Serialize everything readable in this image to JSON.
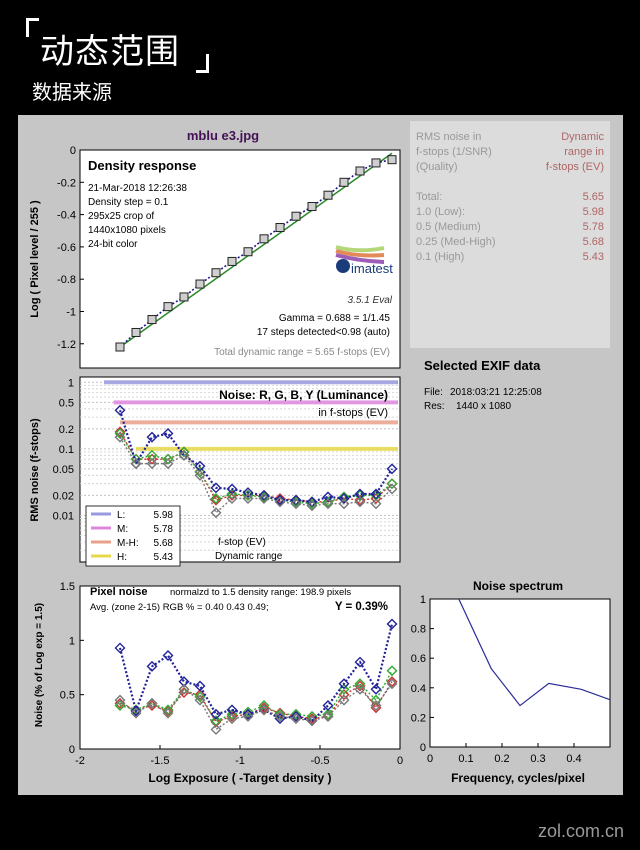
{
  "header": {
    "title": "动态范围",
    "subtitle": "数据来源"
  },
  "watermark": "zol.com.cn",
  "figure_title": "mblu e3.jpg",
  "colors": {
    "panel": "#c6c6c6",
    "plot_bg": "#ffffff",
    "L": "#9999dd",
    "M": "#dd88dd",
    "MH": "#e8a08a",
    "H": "#e6d94a"
  },
  "table": {
    "header_left": [
      "RMS noise in",
      "f-stops (1/SNR)",
      "(Quality)"
    ],
    "header_right": [
      "Dynamic",
      "range in",
      "f-stops (EV)"
    ],
    "rows": [
      {
        "label": "Total:",
        "value": "5.65"
      },
      {
        "label": "1.0  (Low):",
        "value": "5.98"
      },
      {
        "label": "0.5  (Medium)",
        "value": "5.78"
      },
      {
        "label": "0.25 (Med-High)",
        "value": "5.68"
      },
      {
        "label": "0.1  (High)",
        "value": "5.43"
      }
    ]
  },
  "exif": {
    "title": "Selected EXIF data",
    "file_label": "File:",
    "file_value": "2018:03:21 12:25:08",
    "res_label": "Res:",
    "res_value": "1440 x 1080"
  },
  "density": {
    "title": "Density response",
    "info": [
      "21-Mar-2018 12:26:38",
      "Density step = 0.1",
      "295x25 crop of",
      "1440x1080 pixels",
      "24-bit color"
    ],
    "logo": "imatest",
    "version": "3.5.1  Eval",
    "gamma": "Gamma = 0.688 = 1/1.45",
    "steps": "17 steps detected<0.98 (auto)",
    "total": "Total dynamic range = 5.65 f-stops (EV)",
    "ylabel": "Log ( Pixel level / 255 )"
  },
  "noise": {
    "title": "Noise: R, G, B, Y (Luminance)",
    "subtitle": "in f-stops (EV)",
    "ylabel": "RMS noise (f-stops)",
    "legend": [
      {
        "label": "L:",
        "value": "5.98"
      },
      {
        "label": "M:",
        "value": "5.78"
      },
      {
        "label": "M-H:",
        "value": "5.68"
      },
      {
        "label": "H:",
        "value": "5.43"
      }
    ],
    "note1": "f-stop (EV)",
    "note2": "Dynamic range"
  },
  "pixel": {
    "title": "Pixel noise",
    "line1": "normalzd to 1.5 density range: 198.9 pixels",
    "line2": "Avg. (zone 2-15) RGB % = 0.40  0.43  0.49;",
    "yval": "Y = 0.39%",
    "ylabel": "Noise (% of Log exp = 1.5)",
    "xlabel": "Log Exposure ( -Target density )"
  },
  "spectrum": {
    "title": "Noise spectrum",
    "xlabel": "Frequency, cycles/pixel"
  },
  "chart_data": [
    {
      "type": "line",
      "name": "density_response",
      "x": [
        -1.75,
        -1.65,
        -1.55,
        -1.45,
        -1.35,
        -1.25,
        -1.15,
        -1.05,
        -0.95,
        -0.85,
        -0.75,
        -0.65,
        -0.55,
        -0.45,
        -0.35,
        -0.25,
        -0.15,
        -0.05
      ],
      "y": [
        -1.22,
        -1.13,
        -1.05,
        -0.97,
        -0.91,
        -0.83,
        -0.76,
        -0.69,
        -0.63,
        -0.55,
        -0.48,
        -0.41,
        -0.35,
        -0.28,
        -0.2,
        -0.13,
        -0.08,
        -0.06
      ],
      "xlim": [
        -2,
        0
      ],
      "ylim": [
        -1.35,
        0
      ],
      "xticks": [
        "-2",
        "-1.5",
        "-1",
        "-0.5",
        "0"
      ],
      "yticks": [
        "0",
        "-0.2",
        "-0.4",
        "-0.6",
        "-0.8",
        "-1",
        "-1.2"
      ],
      "ytick_values": [
        0,
        -0.2,
        -0.4,
        -0.6,
        -0.8,
        -1,
        -1.2
      ],
      "xlabel": "",
      "ylabel": "Log ( Pixel level / 255 )",
      "grid": false
    },
    {
      "type": "line",
      "name": "rms_noise",
      "scale": "log",
      "x": [
        -1.75,
        -1.65,
        -1.55,
        -1.45,
        -1.35,
        -1.25,
        -1.15,
        -1.05,
        -0.95,
        -0.85,
        -0.75,
        -0.65,
        -0.55,
        -0.45,
        -0.35,
        -0.25,
        -0.15,
        -0.05
      ],
      "series": [
        {
          "name": "R",
          "color": "#cc3333",
          "values": [
            0.18,
            0.07,
            0.07,
            0.07,
            0.09,
            0.045,
            0.017,
            0.02,
            0.02,
            0.02,
            0.018,
            0.017,
            0.016,
            0.016,
            0.018,
            0.017,
            0.018,
            0.03
          ]
        },
        {
          "name": "G",
          "color": "#33aa33",
          "values": [
            0.17,
            0.07,
            0.08,
            0.07,
            0.09,
            0.045,
            0.018,
            0.021,
            0.02,
            0.019,
            0.017,
            0.016,
            0.015,
            0.016,
            0.019,
            0.02,
            0.02,
            0.03
          ]
        },
        {
          "name": "B",
          "color": "#222299",
          "values": [
            0.38,
            0.06,
            0.15,
            0.17,
            0.08,
            0.055,
            0.026,
            0.025,
            0.022,
            0.02,
            0.017,
            0.017,
            0.016,
            0.019,
            0.018,
            0.021,
            0.021,
            0.05
          ]
        },
        {
          "name": "Y",
          "color": "#777777",
          "values": [
            0.15,
            0.06,
            0.06,
            0.06,
            0.08,
            0.04,
            0.011,
            0.018,
            0.018,
            0.018,
            0.016,
            0.015,
            0.014,
            0.015,
            0.015,
            0.016,
            0.015,
            0.025
          ]
        }
      ],
      "thresholds": [
        1.0,
        0.5,
        0.25,
        0.1
      ],
      "threshold_start": [
        -1.85,
        -1.79,
        -1.75,
        -1.65
      ],
      "xlim": [
        -2,
        0
      ],
      "ylim": [
        0.002,
        1.2
      ],
      "yticks": [
        "1",
        "0.5",
        "0.2",
        "0.1",
        "0.05",
        "0.02",
        "0.01"
      ],
      "ytick_values": [
        1,
        0.5,
        0.2,
        0.1,
        0.05,
        0.02,
        0.01
      ],
      "ylabel": "RMS noise (f-stops)",
      "grid": true
    },
    {
      "type": "line",
      "name": "pixel_noise",
      "x": [
        -1.75,
        -1.65,
        -1.55,
        -1.45,
        -1.35,
        -1.25,
        -1.15,
        -1.05,
        -0.95,
        -0.85,
        -0.75,
        -0.65,
        -0.55,
        -0.45,
        -0.35,
        -0.25,
        -0.15,
        -0.05
      ],
      "series": [
        {
          "name": "R",
          "color": "#cc3333",
          "values": [
            0.42,
            0.36,
            0.4,
            0.35,
            0.52,
            0.5,
            0.25,
            0.3,
            0.32,
            0.38,
            0.33,
            0.3,
            0.28,
            0.3,
            0.5,
            0.58,
            0.38,
            0.62
          ]
        },
        {
          "name": "G",
          "color": "#33aa33",
          "values": [
            0.4,
            0.36,
            0.42,
            0.36,
            0.55,
            0.48,
            0.26,
            0.32,
            0.34,
            0.4,
            0.32,
            0.32,
            0.3,
            0.32,
            0.55,
            0.6,
            0.45,
            0.72
          ]
        },
        {
          "name": "B",
          "color": "#222299",
          "values": [
            0.93,
            0.35,
            0.76,
            0.86,
            0.62,
            0.58,
            0.32,
            0.36,
            0.32,
            0.36,
            0.28,
            0.3,
            0.26,
            0.4,
            0.6,
            0.8,
            0.55,
            1.15
          ]
        },
        {
          "name": "Y",
          "color": "#777777",
          "values": [
            0.45,
            0.33,
            0.42,
            0.33,
            0.55,
            0.45,
            0.18,
            0.28,
            0.3,
            0.36,
            0.3,
            0.28,
            0.26,
            0.3,
            0.45,
            0.55,
            0.4,
            0.6
          ]
        }
      ],
      "xlim": [
        -2,
        0
      ],
      "ylim": [
        0,
        1.5
      ],
      "xticks": [
        "-2",
        "-1.5",
        "-1",
        "-0.5",
        "0"
      ],
      "yticks": [
        "1.5",
        "1",
        "0.5",
        "0"
      ],
      "ytick_values": [
        1.5,
        1,
        0.5,
        0
      ],
      "xlabel": "Log Exposure ( -Target density )",
      "ylabel": "Noise (% of Log exp = 1.5)"
    },
    {
      "type": "line",
      "name": "noise_spectrum",
      "x": [
        0.08,
        0.17,
        0.25,
        0.33,
        0.42,
        0.5
      ],
      "values": [
        1.0,
        0.53,
        0.28,
        0.43,
        0.39,
        0.32
      ],
      "xlim": [
        0,
        0.5
      ],
      "ylim": [
        0,
        1
      ],
      "xticks": [
        "0",
        "0.1",
        "0.2",
        "0.3",
        "0.4"
      ],
      "yticks": [
        "1",
        "0.8",
        "0.6",
        "0.4",
        "0.2",
        "0"
      ],
      "ytick_values": [
        1,
        0.8,
        0.6,
        0.4,
        0.2,
        0
      ],
      "xlabel": "Frequency, cycles/pixel",
      "title": "Noise spectrum"
    }
  ]
}
